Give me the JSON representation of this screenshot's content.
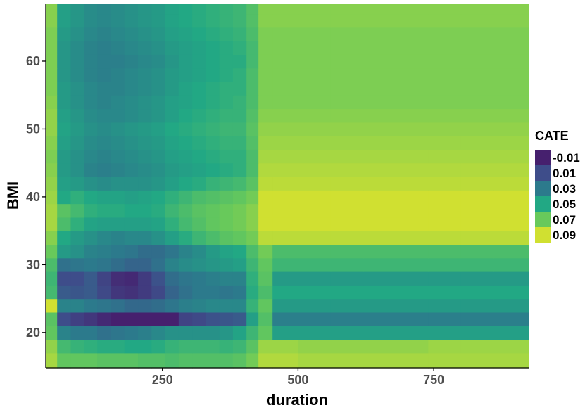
{
  "chart_data": {
    "type": "heatmap",
    "xlabel": "duration",
    "ylabel": "BMI",
    "x_ticks": [
      250,
      500,
      750
    ],
    "y_ticks": [
      20,
      30,
      40,
      50,
      60
    ],
    "xlim": [
      35,
      925
    ],
    "ylim": [
      14.8,
      68.5
    ],
    "grid": false,
    "legend": {
      "title": "CATE",
      "position": "right",
      "labels": [
        "-0.01",
        "0.01",
        "0.03",
        "0.05",
        "0.07",
        "0.09"
      ],
      "colors": [
        "#46206e",
        "#3e4d8a",
        "#2c7a8c",
        "#22a884",
        "#68c95b",
        "#d0e031"
      ]
    },
    "x_centers": [
      44,
      68,
      94,
      118,
      142,
      168,
      192,
      218,
      242,
      268,
      292,
      318,
      342,
      368,
      392,
      418,
      436,
      470,
      530,
      590,
      650,
      710,
      770,
      830,
      890
    ],
    "y_centers": [
      16,
      18,
      20,
      22,
      24,
      26,
      28,
      30,
      32,
      34,
      36,
      38,
      40,
      42,
      44,
      46,
      48,
      50,
      52,
      54,
      56,
      58,
      60,
      62,
      64,
      66,
      68
    ],
    "z": [
      [
        0.082,
        0.068,
        0.068,
        0.068,
        0.066,
        0.066,
        0.066,
        0.064,
        0.064,
        0.062,
        0.064,
        0.064,
        0.064,
        0.064,
        0.066,
        0.072,
        0.084,
        0.084,
        0.082,
        0.082,
        0.082,
        0.082,
        0.082,
        0.082,
        0.082
      ],
      [
        0.078,
        0.06,
        0.056,
        0.054,
        0.052,
        0.052,
        0.05,
        0.05,
        0.052,
        0.056,
        0.058,
        0.058,
        0.058,
        0.056,
        0.058,
        0.066,
        0.08,
        0.08,
        0.078,
        0.078,
        0.078,
        0.078,
        0.08,
        0.08,
        0.08
      ],
      [
        0.068,
        0.034,
        0.03,
        0.03,
        0.026,
        0.028,
        0.03,
        0.032,
        0.036,
        0.04,
        0.04,
        0.04,
        0.04,
        0.042,
        0.048,
        0.058,
        0.068,
        0.046,
        0.046,
        0.046,
        0.046,
        0.046,
        0.046,
        0.046,
        0.046
      ],
      [
        0.066,
        0.01,
        0.004,
        0.0,
        -0.006,
        -0.012,
        -0.014,
        -0.016,
        -0.018,
        -0.01,
        0.006,
        0.008,
        0.012,
        0.014,
        0.016,
        0.046,
        0.064,
        0.032,
        0.032,
        0.032,
        0.032,
        0.032,
        0.032,
        0.032,
        0.032
      ],
      [
        0.09,
        0.034,
        0.034,
        0.03,
        0.028,
        0.026,
        0.022,
        0.022,
        0.024,
        0.028,
        0.032,
        0.034,
        0.036,
        0.036,
        0.036,
        0.056,
        0.068,
        0.044,
        0.044,
        0.044,
        0.044,
        0.044,
        0.044,
        0.044,
        0.044
      ],
      [
        0.06,
        0.016,
        0.014,
        0.016,
        0.008,
        0.0,
        -0.002,
        0.002,
        0.008,
        0.02,
        0.026,
        0.03,
        0.03,
        0.028,
        0.03,
        0.052,
        0.062,
        0.05,
        0.05,
        0.05,
        0.05,
        0.05,
        0.05,
        0.05,
        0.05
      ],
      [
        0.058,
        0.01,
        0.01,
        0.016,
        0.006,
        -0.004,
        -0.006,
        0.002,
        0.012,
        0.024,
        0.028,
        0.03,
        0.032,
        0.034,
        0.034,
        0.054,
        0.066,
        0.044,
        0.044,
        0.044,
        0.044,
        0.044,
        0.044,
        0.044,
        0.044
      ],
      [
        0.062,
        0.026,
        0.028,
        0.03,
        0.028,
        0.024,
        0.02,
        0.02,
        0.026,
        0.034,
        0.038,
        0.04,
        0.042,
        0.044,
        0.046,
        0.058,
        0.068,
        0.058,
        0.058,
        0.058,
        0.058,
        0.058,
        0.058,
        0.058,
        0.058
      ],
      [
        0.07,
        0.044,
        0.04,
        0.034,
        0.032,
        0.03,
        0.028,
        0.024,
        0.024,
        0.028,
        0.034,
        0.038,
        0.044,
        0.048,
        0.05,
        0.062,
        0.072,
        0.062,
        0.062,
        0.062,
        0.062,
        0.062,
        0.062,
        0.062,
        0.062
      ],
      [
        0.076,
        0.05,
        0.044,
        0.04,
        0.036,
        0.034,
        0.036,
        0.036,
        0.04,
        0.046,
        0.052,
        0.058,
        0.062,
        0.066,
        0.068,
        0.072,
        0.086,
        0.086,
        0.086,
        0.086,
        0.086,
        0.086,
        0.086,
        0.086,
        0.086
      ],
      [
        0.082,
        0.062,
        0.054,
        0.048,
        0.046,
        0.046,
        0.046,
        0.046,
        0.048,
        0.054,
        0.06,
        0.064,
        0.068,
        0.07,
        0.072,
        0.076,
        0.094,
        0.094,
        0.094,
        0.094,
        0.094,
        0.094,
        0.094,
        0.094,
        0.094
      ],
      [
        0.082,
        0.066,
        0.06,
        0.054,
        0.052,
        0.052,
        0.05,
        0.05,
        0.052,
        0.058,
        0.062,
        0.066,
        0.068,
        0.07,
        0.072,
        0.076,
        0.094,
        0.094,
        0.094,
        0.094,
        0.094,
        0.094,
        0.094,
        0.094,
        0.094
      ],
      [
        0.08,
        0.05,
        0.054,
        0.05,
        0.048,
        0.048,
        0.046,
        0.048,
        0.05,
        0.054,
        0.058,
        0.062,
        0.064,
        0.066,
        0.068,
        0.072,
        0.09,
        0.09,
        0.09,
        0.09,
        0.09,
        0.09,
        0.09,
        0.09,
        0.09
      ],
      [
        0.078,
        0.046,
        0.044,
        0.04,
        0.038,
        0.04,
        0.04,
        0.04,
        0.042,
        0.046,
        0.05,
        0.052,
        0.056,
        0.058,
        0.06,
        0.066,
        0.086,
        0.086,
        0.086,
        0.086,
        0.086,
        0.086,
        0.086,
        0.086,
        0.086
      ],
      [
        0.076,
        0.044,
        0.04,
        0.034,
        0.032,
        0.034,
        0.036,
        0.038,
        0.04,
        0.044,
        0.046,
        0.048,
        0.05,
        0.052,
        0.054,
        0.062,
        0.084,
        0.084,
        0.084,
        0.084,
        0.084,
        0.084,
        0.084,
        0.084,
        0.084
      ],
      [
        0.074,
        0.044,
        0.04,
        0.036,
        0.034,
        0.036,
        0.038,
        0.04,
        0.042,
        0.046,
        0.048,
        0.05,
        0.052,
        0.054,
        0.054,
        0.062,
        0.082,
        0.082,
        0.082,
        0.082,
        0.082,
        0.082,
        0.082,
        0.082,
        0.082
      ],
      [
        0.076,
        0.046,
        0.042,
        0.038,
        0.036,
        0.038,
        0.04,
        0.042,
        0.044,
        0.048,
        0.05,
        0.052,
        0.054,
        0.056,
        0.056,
        0.064,
        0.08,
        0.08,
        0.08,
        0.08,
        0.08,
        0.08,
        0.08,
        0.08,
        0.08
      ],
      [
        0.078,
        0.048,
        0.044,
        0.04,
        0.038,
        0.04,
        0.042,
        0.044,
        0.046,
        0.05,
        0.052,
        0.054,
        0.056,
        0.058,
        0.058,
        0.066,
        0.078,
        0.078,
        0.078,
        0.078,
        0.078,
        0.078,
        0.078,
        0.078,
        0.078
      ],
      [
        0.078,
        0.046,
        0.042,
        0.038,
        0.036,
        0.036,
        0.038,
        0.04,
        0.042,
        0.046,
        0.05,
        0.052,
        0.054,
        0.056,
        0.056,
        0.064,
        0.076,
        0.076,
        0.076,
        0.076,
        0.076,
        0.076,
        0.076,
        0.076,
        0.076
      ],
      [
        0.076,
        0.044,
        0.04,
        0.036,
        0.034,
        0.036,
        0.038,
        0.04,
        0.042,
        0.046,
        0.048,
        0.05,
        0.052,
        0.054,
        0.056,
        0.062,
        0.074,
        0.074,
        0.074,
        0.074,
        0.074,
        0.074,
        0.074,
        0.074,
        0.074
      ],
      [
        0.074,
        0.044,
        0.04,
        0.036,
        0.034,
        0.034,
        0.036,
        0.038,
        0.04,
        0.044,
        0.048,
        0.05,
        0.052,
        0.054,
        0.054,
        0.062,
        0.074,
        0.074,
        0.074,
        0.074,
        0.074,
        0.074,
        0.074,
        0.074,
        0.074
      ],
      [
        0.074,
        0.042,
        0.038,
        0.034,
        0.032,
        0.034,
        0.036,
        0.038,
        0.04,
        0.044,
        0.046,
        0.048,
        0.05,
        0.052,
        0.054,
        0.062,
        0.074,
        0.074,
        0.074,
        0.074,
        0.074,
        0.074,
        0.074,
        0.074,
        0.074
      ],
      [
        0.074,
        0.042,
        0.038,
        0.034,
        0.032,
        0.032,
        0.034,
        0.036,
        0.038,
        0.042,
        0.046,
        0.048,
        0.05,
        0.052,
        0.052,
        0.06,
        0.074,
        0.074,
        0.074,
        0.074,
        0.074,
        0.074,
        0.074,
        0.074,
        0.074
      ],
      [
        0.074,
        0.042,
        0.038,
        0.034,
        0.032,
        0.034,
        0.036,
        0.038,
        0.04,
        0.044,
        0.046,
        0.048,
        0.05,
        0.052,
        0.054,
        0.06,
        0.074,
        0.074,
        0.074,
        0.074,
        0.074,
        0.074,
        0.074,
        0.074,
        0.074
      ],
      [
        0.074,
        0.044,
        0.04,
        0.036,
        0.034,
        0.036,
        0.038,
        0.04,
        0.042,
        0.046,
        0.048,
        0.05,
        0.052,
        0.054,
        0.056,
        0.062,
        0.074,
        0.074,
        0.074,
        0.074,
        0.074,
        0.074,
        0.074,
        0.074,
        0.074
      ],
      [
        0.076,
        0.046,
        0.042,
        0.038,
        0.036,
        0.038,
        0.04,
        0.042,
        0.044,
        0.048,
        0.05,
        0.052,
        0.054,
        0.056,
        0.058,
        0.064,
        0.076,
        0.076,
        0.076,
        0.076,
        0.076,
        0.076,
        0.076,
        0.076,
        0.076
      ],
      [
        0.076,
        0.046,
        0.042,
        0.038,
        0.036,
        0.038,
        0.04,
        0.042,
        0.044,
        0.048,
        0.05,
        0.052,
        0.054,
        0.056,
        0.058,
        0.064,
        0.076,
        0.076,
        0.076,
        0.076,
        0.076,
        0.076,
        0.076,
        0.076,
        0.076
      ]
    ]
  }
}
